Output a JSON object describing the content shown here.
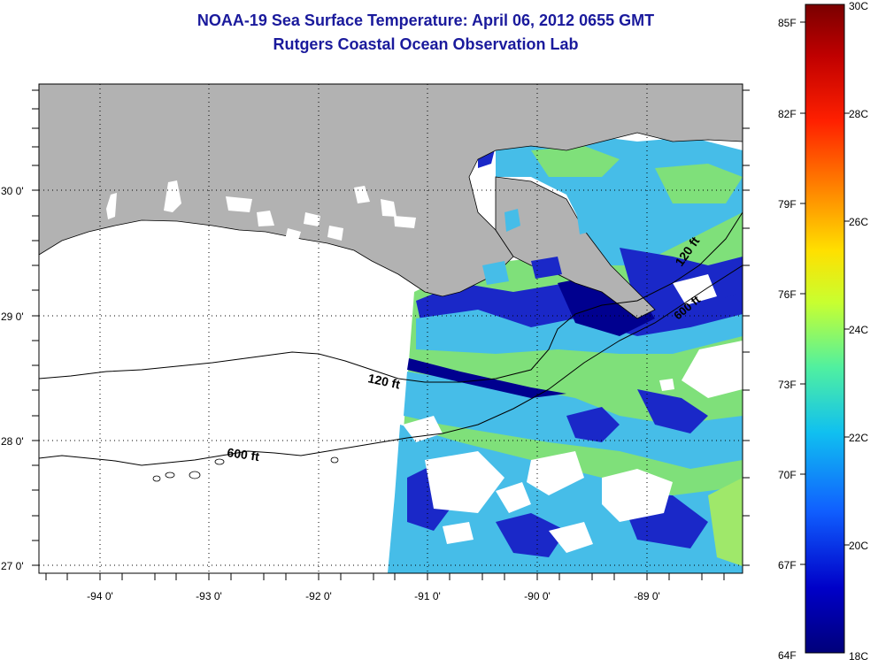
{
  "header": {
    "title": "NOAA-19 Sea Surface Temperature:  April 06, 2012 0655 GMT",
    "subtitle": "Rutgers Coastal Ocean Observation Lab"
  },
  "map": {
    "lat_labels": [
      "30 0'",
      "29 0'",
      "28 0'",
      "27 0'"
    ],
    "lon_labels": [
      "-94 0'",
      "-93 0'",
      "-92 0'",
      "-91 0'",
      "-90 0'",
      "-89 0'"
    ],
    "contours": [
      "120 ft",
      "600 ft"
    ],
    "colors": {
      "land": "#b2b2b2",
      "no_data": "#ffffff",
      "warm_water": "#7fe07a",
      "mid_water": "#46bde8",
      "cool_water": "#1a28c8",
      "cold_water": "#00008f"
    }
  },
  "colorbar": {
    "fahrenheit": [
      "85F",
      "82F",
      "79F",
      "76F",
      "73F",
      "70F",
      "67F",
      "64F"
    ],
    "celsius": [
      "30C",
      "28C",
      "26C",
      "24C",
      "22C",
      "20C",
      "18C"
    ],
    "colors": [
      "#7a0000",
      "#d80000",
      "#ff6000",
      "#ffd000",
      "#c8ff30",
      "#50f0a0",
      "#10c0f0",
      "#1060ff",
      "#0000c0",
      "#00007a"
    ]
  }
}
